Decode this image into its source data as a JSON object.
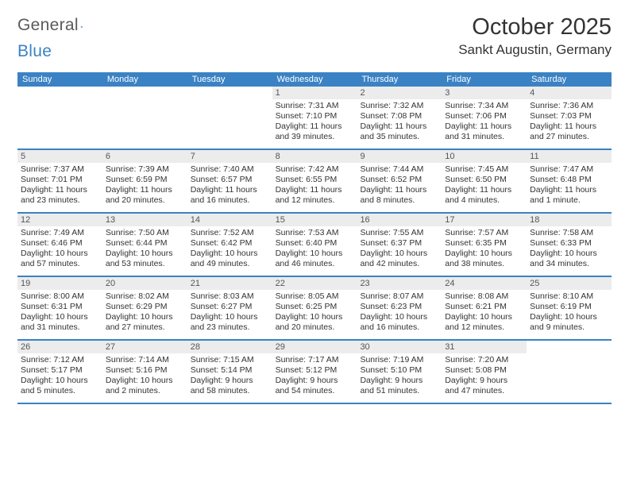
{
  "logo": {
    "text1": "General",
    "text2": "Blue"
  },
  "header": {
    "month_title": "October 2025",
    "location": "Sankt Augustin, Germany"
  },
  "colors": {
    "brand_blue": "#3b82c4",
    "logo_gray": "#5a5a5a",
    "header_row_bg": "#3b82c4",
    "daynum_bg": "#ececec",
    "text": "#333333",
    "page_bg": "#ffffff"
  },
  "typography": {
    "month_title_fontsize": 29,
    "location_fontsize": 17,
    "dow_fontsize": 11,
    "cell_fontsize": 10.5
  },
  "days_of_week": [
    "Sunday",
    "Monday",
    "Tuesday",
    "Wednesday",
    "Thursday",
    "Friday",
    "Saturday"
  ],
  "weeks": [
    [
      {
        "n": "",
        "sunrise": "",
        "sunset": "",
        "daylight": ""
      },
      {
        "n": "",
        "sunrise": "",
        "sunset": "",
        "daylight": ""
      },
      {
        "n": "",
        "sunrise": "",
        "sunset": "",
        "daylight": ""
      },
      {
        "n": "1",
        "sunrise": "Sunrise: 7:31 AM",
        "sunset": "Sunset: 7:10 PM",
        "daylight": "Daylight: 11 hours and 39 minutes."
      },
      {
        "n": "2",
        "sunrise": "Sunrise: 7:32 AM",
        "sunset": "Sunset: 7:08 PM",
        "daylight": "Daylight: 11 hours and 35 minutes."
      },
      {
        "n": "3",
        "sunrise": "Sunrise: 7:34 AM",
        "sunset": "Sunset: 7:06 PM",
        "daylight": "Daylight: 11 hours and 31 minutes."
      },
      {
        "n": "4",
        "sunrise": "Sunrise: 7:36 AM",
        "sunset": "Sunset: 7:03 PM",
        "daylight": "Daylight: 11 hours and 27 minutes."
      }
    ],
    [
      {
        "n": "5",
        "sunrise": "Sunrise: 7:37 AM",
        "sunset": "Sunset: 7:01 PM",
        "daylight": "Daylight: 11 hours and 23 minutes."
      },
      {
        "n": "6",
        "sunrise": "Sunrise: 7:39 AM",
        "sunset": "Sunset: 6:59 PM",
        "daylight": "Daylight: 11 hours and 20 minutes."
      },
      {
        "n": "7",
        "sunrise": "Sunrise: 7:40 AM",
        "sunset": "Sunset: 6:57 PM",
        "daylight": "Daylight: 11 hours and 16 minutes."
      },
      {
        "n": "8",
        "sunrise": "Sunrise: 7:42 AM",
        "sunset": "Sunset: 6:55 PM",
        "daylight": "Daylight: 11 hours and 12 minutes."
      },
      {
        "n": "9",
        "sunrise": "Sunrise: 7:44 AM",
        "sunset": "Sunset: 6:52 PM",
        "daylight": "Daylight: 11 hours and 8 minutes."
      },
      {
        "n": "10",
        "sunrise": "Sunrise: 7:45 AM",
        "sunset": "Sunset: 6:50 PM",
        "daylight": "Daylight: 11 hours and 4 minutes."
      },
      {
        "n": "11",
        "sunrise": "Sunrise: 7:47 AM",
        "sunset": "Sunset: 6:48 PM",
        "daylight": "Daylight: 11 hours and 1 minute."
      }
    ],
    [
      {
        "n": "12",
        "sunrise": "Sunrise: 7:49 AM",
        "sunset": "Sunset: 6:46 PM",
        "daylight": "Daylight: 10 hours and 57 minutes."
      },
      {
        "n": "13",
        "sunrise": "Sunrise: 7:50 AM",
        "sunset": "Sunset: 6:44 PM",
        "daylight": "Daylight: 10 hours and 53 minutes."
      },
      {
        "n": "14",
        "sunrise": "Sunrise: 7:52 AM",
        "sunset": "Sunset: 6:42 PM",
        "daylight": "Daylight: 10 hours and 49 minutes."
      },
      {
        "n": "15",
        "sunrise": "Sunrise: 7:53 AM",
        "sunset": "Sunset: 6:40 PM",
        "daylight": "Daylight: 10 hours and 46 minutes."
      },
      {
        "n": "16",
        "sunrise": "Sunrise: 7:55 AM",
        "sunset": "Sunset: 6:37 PM",
        "daylight": "Daylight: 10 hours and 42 minutes."
      },
      {
        "n": "17",
        "sunrise": "Sunrise: 7:57 AM",
        "sunset": "Sunset: 6:35 PM",
        "daylight": "Daylight: 10 hours and 38 minutes."
      },
      {
        "n": "18",
        "sunrise": "Sunrise: 7:58 AM",
        "sunset": "Sunset: 6:33 PM",
        "daylight": "Daylight: 10 hours and 34 minutes."
      }
    ],
    [
      {
        "n": "19",
        "sunrise": "Sunrise: 8:00 AM",
        "sunset": "Sunset: 6:31 PM",
        "daylight": "Daylight: 10 hours and 31 minutes."
      },
      {
        "n": "20",
        "sunrise": "Sunrise: 8:02 AM",
        "sunset": "Sunset: 6:29 PM",
        "daylight": "Daylight: 10 hours and 27 minutes."
      },
      {
        "n": "21",
        "sunrise": "Sunrise: 8:03 AM",
        "sunset": "Sunset: 6:27 PM",
        "daylight": "Daylight: 10 hours and 23 minutes."
      },
      {
        "n": "22",
        "sunrise": "Sunrise: 8:05 AM",
        "sunset": "Sunset: 6:25 PM",
        "daylight": "Daylight: 10 hours and 20 minutes."
      },
      {
        "n": "23",
        "sunrise": "Sunrise: 8:07 AM",
        "sunset": "Sunset: 6:23 PM",
        "daylight": "Daylight: 10 hours and 16 minutes."
      },
      {
        "n": "24",
        "sunrise": "Sunrise: 8:08 AM",
        "sunset": "Sunset: 6:21 PM",
        "daylight": "Daylight: 10 hours and 12 minutes."
      },
      {
        "n": "25",
        "sunrise": "Sunrise: 8:10 AM",
        "sunset": "Sunset: 6:19 PM",
        "daylight": "Daylight: 10 hours and 9 minutes."
      }
    ],
    [
      {
        "n": "26",
        "sunrise": "Sunrise: 7:12 AM",
        "sunset": "Sunset: 5:17 PM",
        "daylight": "Daylight: 10 hours and 5 minutes."
      },
      {
        "n": "27",
        "sunrise": "Sunrise: 7:14 AM",
        "sunset": "Sunset: 5:16 PM",
        "daylight": "Daylight: 10 hours and 2 minutes."
      },
      {
        "n": "28",
        "sunrise": "Sunrise: 7:15 AM",
        "sunset": "Sunset: 5:14 PM",
        "daylight": "Daylight: 9 hours and 58 minutes."
      },
      {
        "n": "29",
        "sunrise": "Sunrise: 7:17 AM",
        "sunset": "Sunset: 5:12 PM",
        "daylight": "Daylight: 9 hours and 54 minutes."
      },
      {
        "n": "30",
        "sunrise": "Sunrise: 7:19 AM",
        "sunset": "Sunset: 5:10 PM",
        "daylight": "Daylight: 9 hours and 51 minutes."
      },
      {
        "n": "31",
        "sunrise": "Sunrise: 7:20 AM",
        "sunset": "Sunset: 5:08 PM",
        "daylight": "Daylight: 9 hours and 47 minutes."
      },
      {
        "n": "",
        "sunrise": "",
        "sunset": "",
        "daylight": ""
      }
    ]
  ]
}
